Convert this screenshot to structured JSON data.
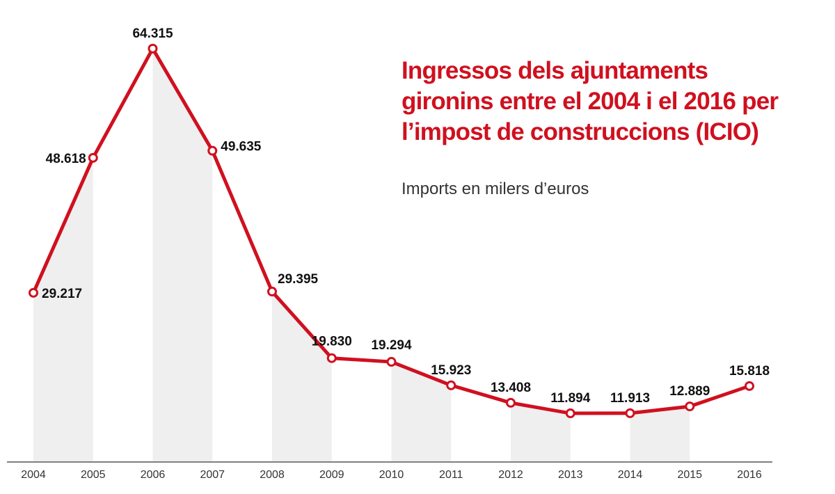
{
  "chart_data": {
    "type": "line",
    "title": "Ingressos dels ajuntaments gironins entre el 2004 i el 2016 per l’impost de construccions (ICIO)",
    "subtitle": "Imports en milers d’euros",
    "xlabel": "",
    "ylabel": "",
    "categories": [
      "2004",
      "2005",
      "2006",
      "2007",
      "2008",
      "2009",
      "2010",
      "2011",
      "2012",
      "2013",
      "2014",
      "2015",
      "2016"
    ],
    "values": [
      29.217,
      48.618,
      64.315,
      49.635,
      29.395,
      19.83,
      19.294,
      15.923,
      13.408,
      11.894,
      11.913,
      12.889,
      15.818
    ],
    "labels": [
      "29.217",
      "48.618",
      "64.315",
      "49.635",
      "29.395",
      "19.830",
      "19.294",
      "15.923",
      "13.408",
      "11.894",
      "11.913",
      "12.889",
      "15.818"
    ],
    "ylim": [
      5,
      65.5
    ],
    "grid": false,
    "legend": "none",
    "colors": {
      "line": "#d0101f",
      "band": "#efefef",
      "text": "#111111",
      "axis": "#555555"
    }
  }
}
